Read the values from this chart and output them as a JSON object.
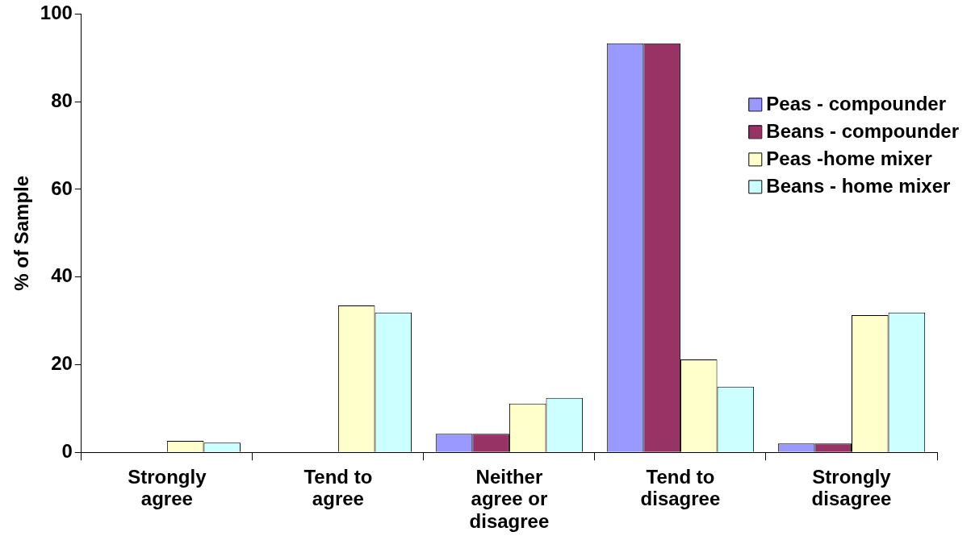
{
  "chart_data": {
    "type": "bar",
    "ylabel": "% of Sample",
    "categories": [
      "Strongly agree",
      "Tend to agree",
      "Neither agree or disagree",
      "Tend to disagree",
      "Strongly disagree"
    ],
    "series": [
      {
        "name": "Peas - compounder",
        "color": "#9999ff",
        "values": [
          0,
          0,
          4.2,
          93.3,
          2
        ]
      },
      {
        "name": "Beans - compounder",
        "color": "#993366",
        "values": [
          0,
          0,
          4.2,
          93.3,
          2
        ]
      },
      {
        "name": "Peas -home mixer",
        "color": "#ffffcc",
        "values": [
          2.6,
          33.5,
          11.1,
          21.2,
          31.3
        ]
      },
      {
        "name": "Beans - home mixer",
        "color": "#ccffff",
        "values": [
          2.2,
          31.9,
          12.4,
          15,
          31.9
        ]
      }
    ],
    "ylim": [
      0,
      100
    ],
    "yticks": [
      0,
      20,
      40,
      60,
      80,
      100
    ],
    "grid": false,
    "legend": "top right"
  }
}
